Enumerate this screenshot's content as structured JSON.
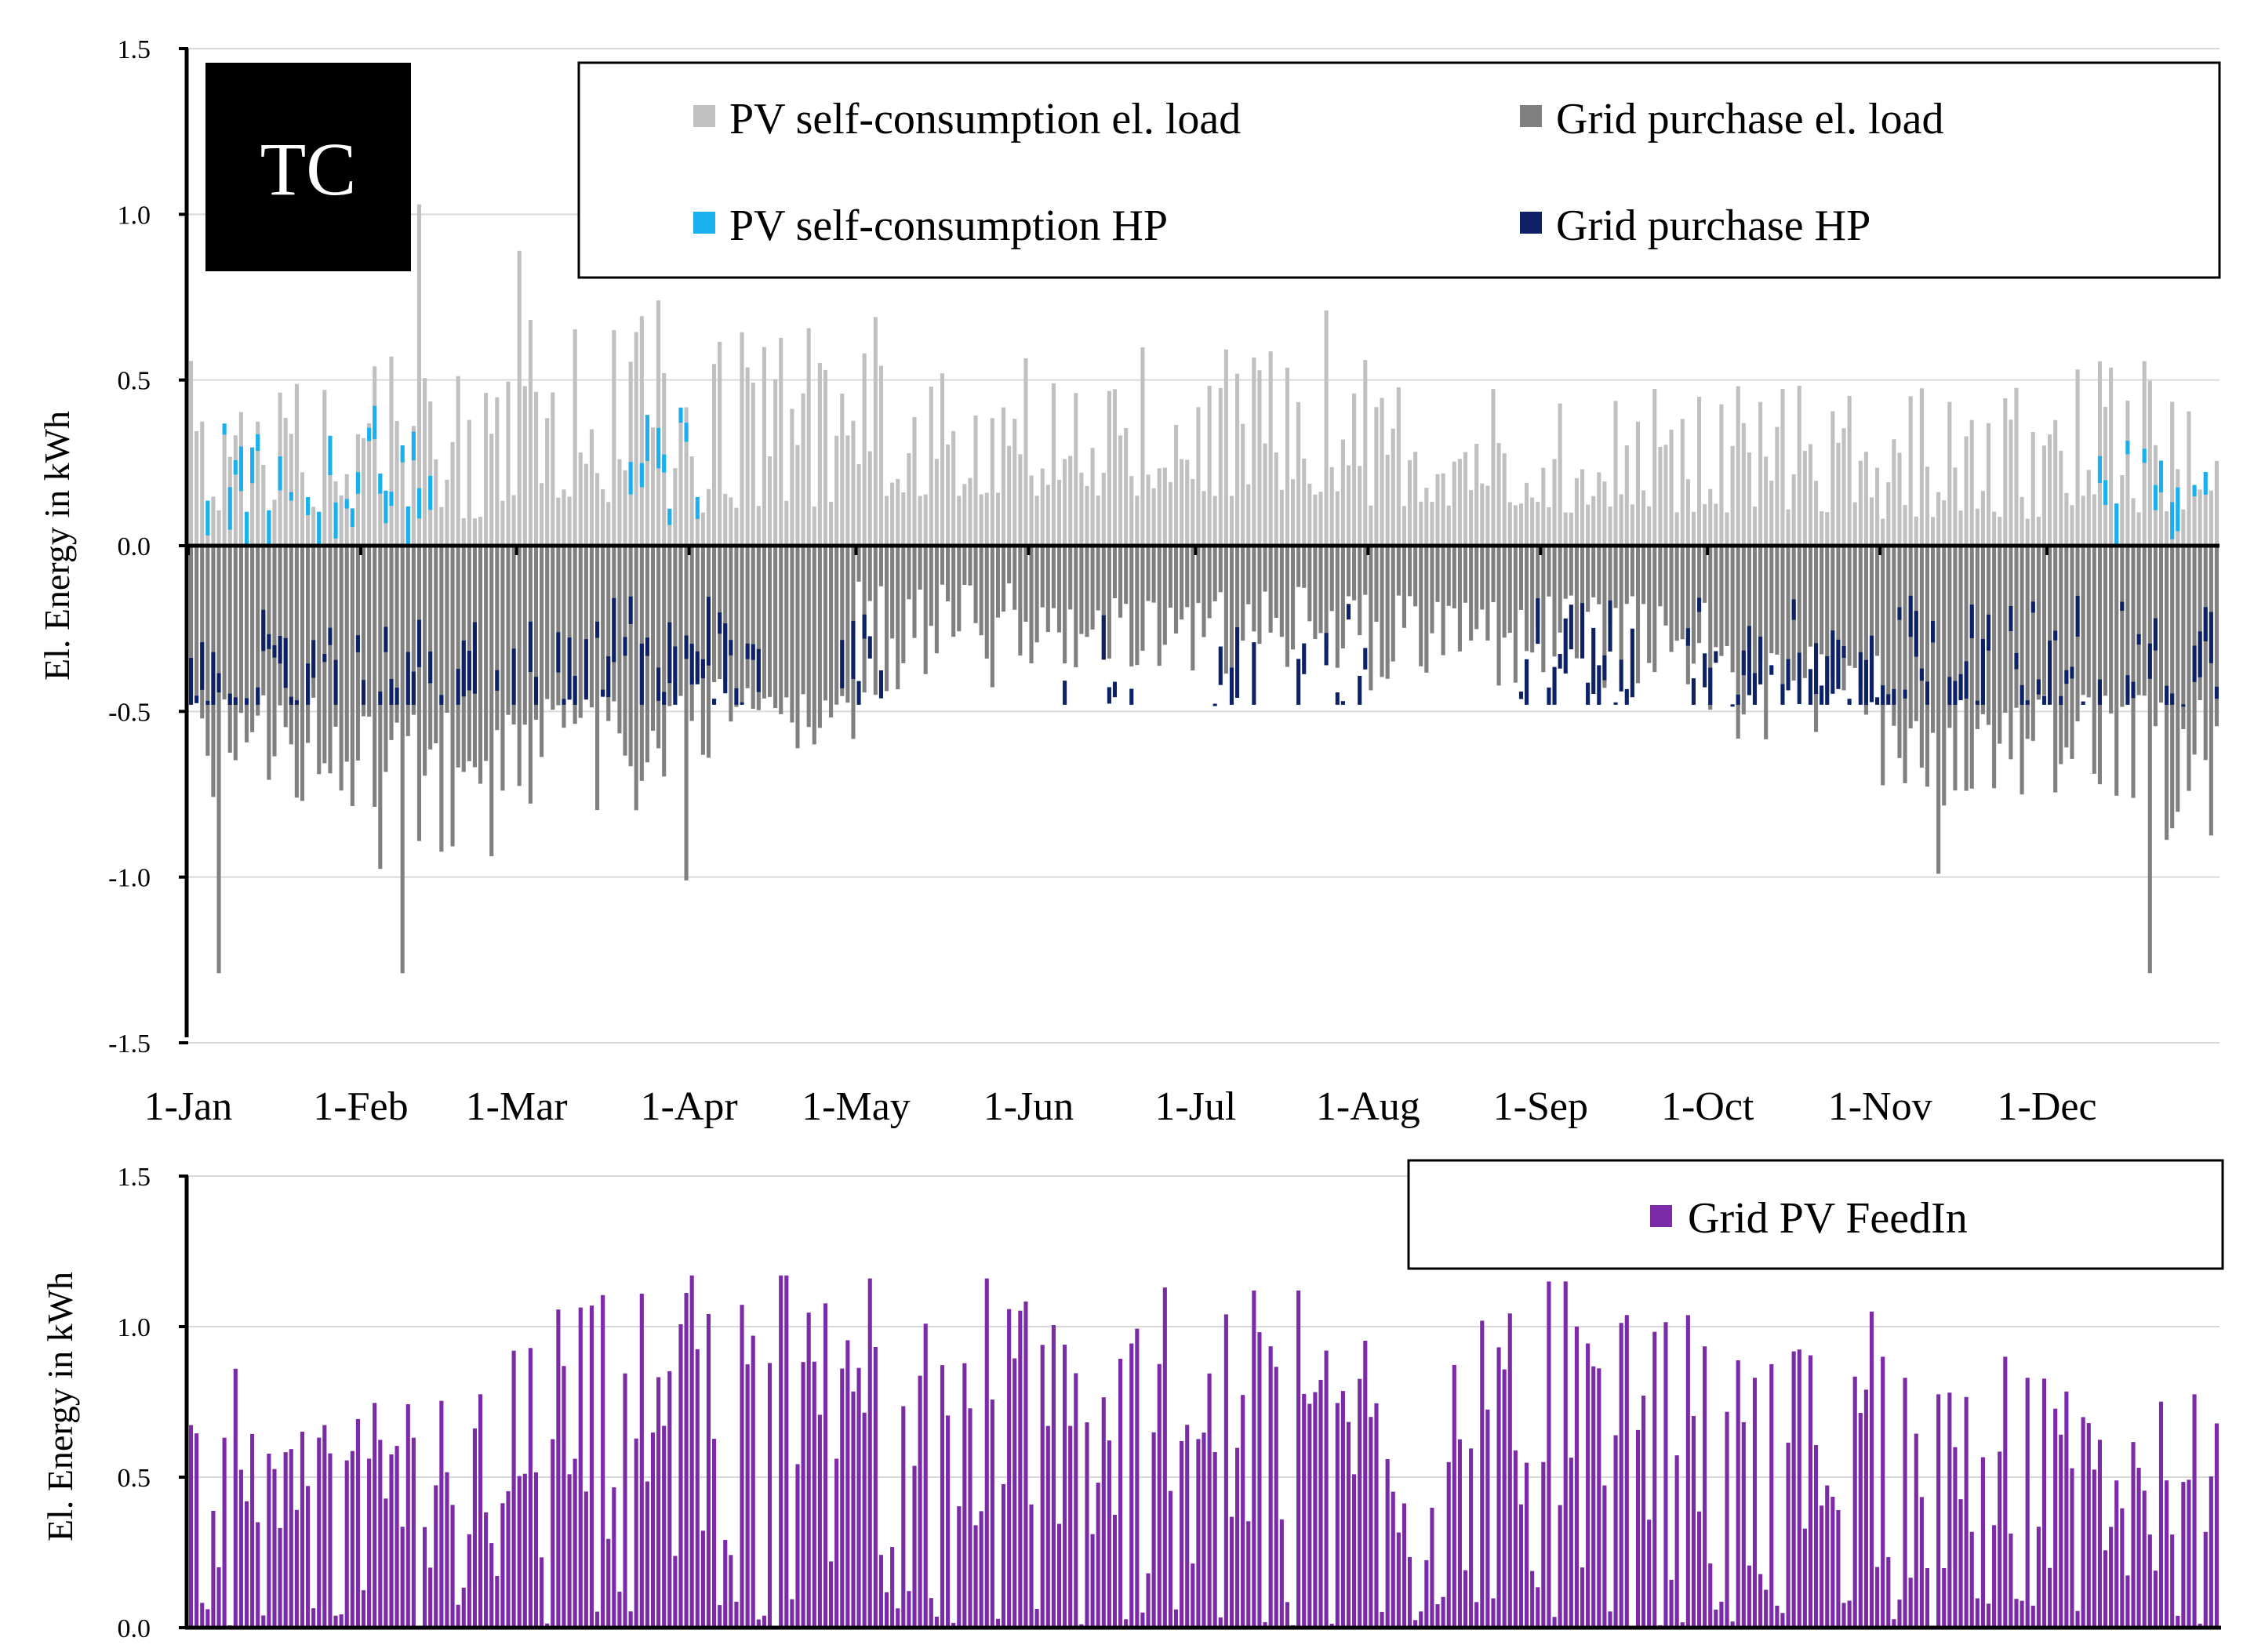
{
  "chart_data": [
    {
      "id": "top",
      "type": "bar",
      "stacked": true,
      "title": "",
      "badge": "TC",
      "xlabel": "",
      "ylabel": "El. Energy  in kWh",
      "ylim": [
        -1.5,
        1.5
      ],
      "yticks": [
        {
          "value": 1.5,
          "label": "1.5"
        },
        {
          "value": 1.0,
          "label": "1.0"
        },
        {
          "value": 0.5,
          "label": "0.5"
        },
        {
          "value": 0.0,
          "label": "0.0"
        },
        {
          "value": -0.5,
          "label": "-0.5"
        },
        {
          "value": -1.0,
          "label": "-1.0"
        },
        {
          "value": -1.5,
          "label": "-1.5"
        }
      ],
      "x_unit": "day of year",
      "xlim": [
        1,
        365
      ],
      "xticks": [
        {
          "day": 1,
          "label": "1-Jan"
        },
        {
          "day": 32,
          "label": "1-Feb"
        },
        {
          "day": 60,
          "label": "1-Mar"
        },
        {
          "day": 91,
          "label": "1-Apr"
        },
        {
          "day": 121,
          "label": "1-May"
        },
        {
          "day": 152,
          "label": "1-Jun"
        },
        {
          "day": 182,
          "label": "1-Jul"
        },
        {
          "day": 213,
          "label": "1-Aug"
        },
        {
          "day": 244,
          "label": "1-Sep"
        },
        {
          "day": 274,
          "label": "1-Oct"
        },
        {
          "day": 305,
          "label": "1-Nov"
        },
        {
          "day": 335,
          "label": "1-Dec"
        }
      ],
      "grid": true,
      "legend_position": "top-right",
      "series": [
        {
          "name": "PV self-consumption el. load",
          "color": "#c0c0c0",
          "sign": "positive",
          "monthly_typical_range": [
            [
              0.1,
              0.6
            ],
            [
              0.08,
              0.6
            ],
            [
              0.1,
              0.7
            ],
            [
              0.1,
              0.7
            ],
            [
              0.15,
              0.6
            ],
            [
              0.15,
              0.6
            ],
            [
              0.15,
              0.6
            ],
            [
              0.12,
              0.55
            ],
            [
              0.1,
              0.5
            ],
            [
              0.1,
              0.5
            ],
            [
              0.08,
              0.5
            ],
            [
              0.1,
              0.6
            ]
          ],
          "peaks": [
            {
              "day": 42,
              "value": 1.03
            },
            {
              "day": 60,
              "value": 0.89
            },
            {
              "day": 85,
              "value": 0.74
            },
            {
              "day": 124,
              "value": 0.69
            },
            {
              "day": 205,
              "value": 0.71
            }
          ]
        },
        {
          "name": "Grid purchase el. load",
          "color": "#808080",
          "sign": "negative",
          "monthly_typical_range": [
            [
              -0.45,
              -0.8
            ],
            [
              -0.5,
              -1.0
            ],
            [
              -0.45,
              -0.8
            ],
            [
              -0.4,
              -0.7
            ],
            [
              -0.1,
              -0.45
            ],
            [
              -0.15,
              -0.4
            ],
            [
              -0.12,
              -0.4
            ],
            [
              -0.15,
              -0.45
            ],
            [
              -0.15,
              -0.45
            ],
            [
              -0.3,
              -0.6
            ],
            [
              -0.45,
              -0.8
            ],
            [
              -0.45,
              -0.9
            ]
          ],
          "peaks": [
            {
              "day": 39,
              "value": -1.29
            },
            {
              "day": 6,
              "value": -1.29
            },
            {
              "day": 353,
              "value": -1.29
            },
            {
              "day": 90,
              "value": -1.01
            },
            {
              "day": 315,
              "value": -0.99
            }
          ]
        },
        {
          "name": "PV self-consumption HP",
          "color": "#1ab0f0",
          "sign": "positive",
          "active_periods": [
            [
              1,
              45
            ],
            [
              80,
              92
            ],
            [
              340,
              365
            ]
          ],
          "typical_range": [
            0.12,
            0.48
          ]
        },
        {
          "name": "Grid purchase HP",
          "color": "#0c2166",
          "sign": "negative",
          "active_periods": [
            [
              1,
              105
            ],
            [
              118,
              125
            ],
            [
              155,
              158
            ],
            [
              165,
              170
            ],
            [
              184,
              192
            ],
            [
              200,
              215
            ],
            [
              240,
              260
            ],
            [
              270,
              365
            ]
          ],
          "typical_range": [
            -0.15,
            -0.48
          ]
        }
      ]
    },
    {
      "id": "bottom",
      "type": "bar",
      "title": "",
      "xlabel": "",
      "ylabel": "El. Energy  in kWh",
      "ylim": [
        0.0,
        1.5
      ],
      "yticks": [
        {
          "value": 1.5,
          "label": "1.5"
        },
        {
          "value": 1.0,
          "label": "1.0"
        },
        {
          "value": 0.5,
          "label": "0.5"
        },
        {
          "value": 0.0,
          "label": "0.0"
        }
      ],
      "x_unit": "day of year",
      "xlim": [
        1,
        365
      ],
      "grid": true,
      "legend_position": "top-right",
      "series": [
        {
          "name": "Grid PV FeedIn",
          "color": "#7b2aa8",
          "monthly_max": [
            0.86,
            0.92,
            1.23,
            1.17,
            1.16,
            1.13,
            1.12,
            1.1,
            1.15,
            1.05,
            0.9,
            0.87
          ],
          "monthly_typical_range": [
            [
              0.0,
              0.7
            ],
            [
              0.0,
              0.8
            ],
            [
              0.0,
              1.15
            ],
            [
              0.0,
              1.1
            ],
            [
              0.0,
              1.1
            ],
            [
              0.0,
              1.05
            ],
            [
              0.0,
              1.05
            ],
            [
              0.0,
              1.05
            ],
            [
              0.0,
              1.05
            ],
            [
              0.0,
              0.95
            ],
            [
              0.0,
              0.85
            ],
            [
              0.0,
              0.8
            ]
          ]
        }
      ]
    }
  ]
}
